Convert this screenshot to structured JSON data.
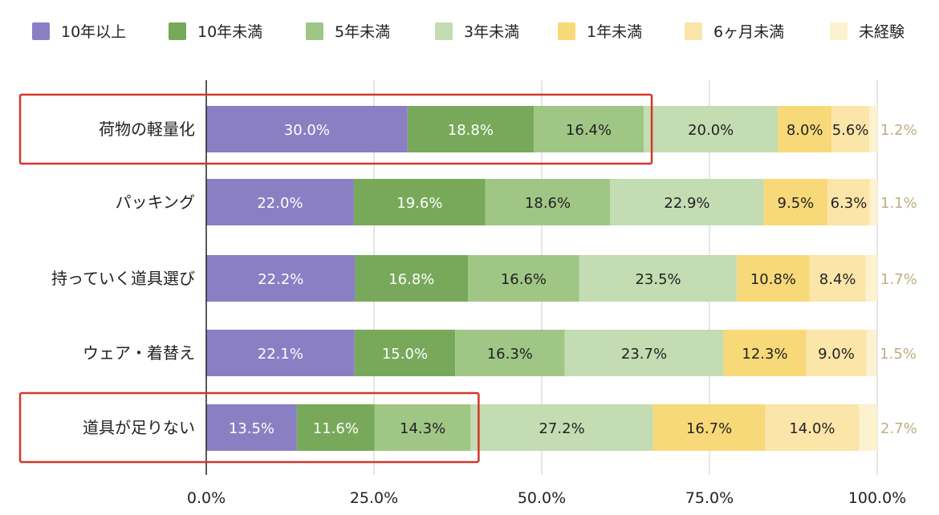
{
  "chart_data": {
    "type": "bar",
    "orientation": "horizontal",
    "stacked": "percent",
    "categories": [
      "荷物の軽量化",
      "パッキング",
      "持っていく道具選び",
      "ウェア・着替え",
      "道具が足りない"
    ],
    "series": [
      {
        "name": "10年以上",
        "color": "#8b7fc4",
        "label_color": "#ffffff",
        "values": [
          30.0,
          22.0,
          22.2,
          22.1,
          13.5
        ]
      },
      {
        "name": "10年未満",
        "color": "#78a95a",
        "label_color": "#ffffff",
        "values": [
          18.8,
          19.6,
          16.8,
          15.0,
          11.6
        ]
      },
      {
        "name": "5年未満",
        "color": "#a0c686",
        "label_color": "#222222",
        "values": [
          16.4,
          18.6,
          16.6,
          16.3,
          14.3
        ]
      },
      {
        "name": "3年未満",
        "color": "#c3dcb2",
        "label_color": "#222222",
        "values": [
          20.0,
          22.9,
          23.5,
          23.7,
          27.2
        ]
      },
      {
        "name": "1年未満",
        "color": "#f8d979",
        "label_color": "#222222",
        "values": [
          8.0,
          9.5,
          10.8,
          12.3,
          16.7
        ]
      },
      {
        "name": "6ヶ月未満",
        "color": "#fbe5a8",
        "label_color": "#222222",
        "values": [
          5.6,
          6.3,
          8.4,
          9.0,
          14.0
        ]
      },
      {
        "name": "未経験",
        "color": "#fdf2cf",
        "label_color": "#bfae80",
        "values": [
          1.2,
          1.1,
          1.7,
          1.5,
          2.7
        ]
      }
    ],
    "x_ticks": [
      "0.0%",
      "25.0%",
      "50.0%",
      "75.0%",
      "100.0%"
    ],
    "xlim": [
      0,
      100
    ],
    "grid": true,
    "legend_position": "top",
    "highlight_color": "#d0392b",
    "highlights": [
      {
        "category": "荷物の軽量化",
        "series_through": "5年未満"
      },
      {
        "category": "道具が足りない",
        "series_through": "5年未満"
      }
    ]
  }
}
